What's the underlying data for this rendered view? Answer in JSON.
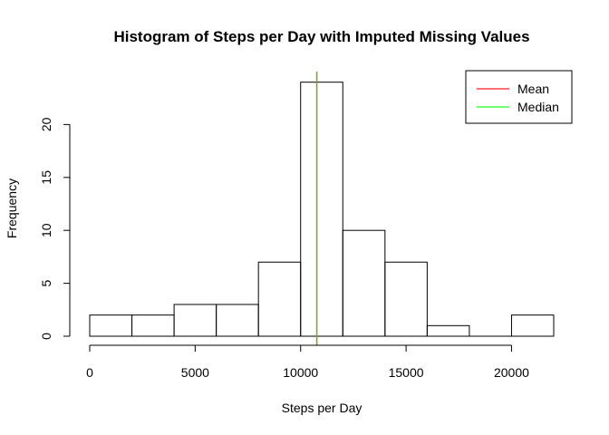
{
  "chart_data": {
    "type": "histogram",
    "title": "Histogram of Steps per Day with Imputed Missing Values",
    "xlabel": "Steps per Day",
    "ylabel": "Frequency",
    "bins": [
      {
        "start": 0,
        "end": 2000,
        "count": 2
      },
      {
        "start": 2000,
        "end": 4000,
        "count": 2
      },
      {
        "start": 4000,
        "end": 6000,
        "count": 3
      },
      {
        "start": 6000,
        "end": 8000,
        "count": 3
      },
      {
        "start": 8000,
        "end": 10000,
        "count": 7
      },
      {
        "start": 10000,
        "end": 12000,
        "count": 24
      },
      {
        "start": 12000,
        "end": 14000,
        "count": 10
      },
      {
        "start": 14000,
        "end": 16000,
        "count": 7
      },
      {
        "start": 16000,
        "end": 18000,
        "count": 1
      },
      {
        "start": 18000,
        "end": 20000,
        "count": 0
      },
      {
        "start": 20000,
        "end": 22000,
        "count": 2
      }
    ],
    "x_ticks": [
      0,
      5000,
      10000,
      15000,
      20000
    ],
    "x_tick_labels": [
      "0",
      "5000",
      "10000",
      "15000",
      "20000"
    ],
    "y_ticks": [
      0,
      5,
      10,
      15,
      20
    ],
    "y_tick_labels": [
      "0",
      "5",
      "10",
      "15",
      "20"
    ],
    "xlim": [
      0,
      22000
    ],
    "ylim": [
      0,
      25
    ],
    "vlines": [
      {
        "name": "Mean",
        "value": 10766.19,
        "color": "#ff0000"
      },
      {
        "name": "Median",
        "value": 10766.19,
        "color": "#00ff00"
      }
    ],
    "legend": {
      "position": "top-right",
      "entries": [
        {
          "label": "Mean",
          "color": "#ff0000"
        },
        {
          "label": "Median",
          "color": "#00ff00"
        }
      ]
    }
  }
}
